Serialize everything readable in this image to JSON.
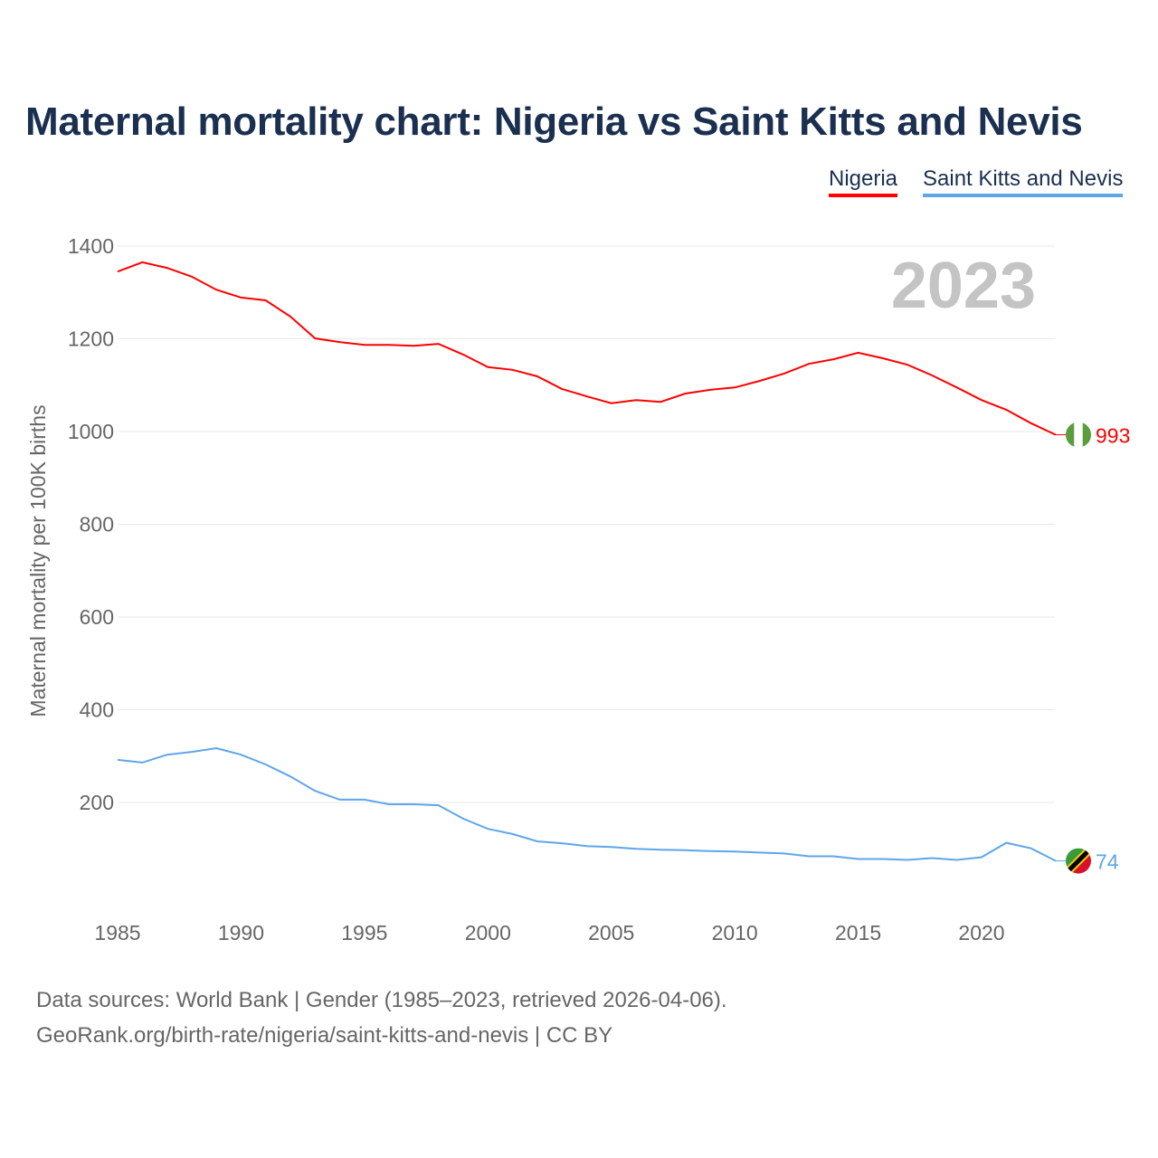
{
  "title": "Maternal mortality chart: Nigeria vs Saint Kitts and Nevis",
  "footer": {
    "line1": "Data sources: World Bank | Gender (1985–2023, retrieved 2026-04-06).",
    "line2": "GeoRank.org/birth-rate/nigeria/saint-kitts-and-nevis | CC BY"
  },
  "chart_data": {
    "type": "line",
    "title": "Maternal mortality chart: Nigeria vs Saint Kitts and Nevis",
    "xlabel": "",
    "ylabel": "Maternal mortality per 100K births",
    "year_label": "2023",
    "xlim": [
      1985,
      2023
    ],
    "ylim": [
      0,
      1400
    ],
    "x_ticks": [
      1985,
      1990,
      1995,
      2000,
      2005,
      2010,
      2015,
      2020
    ],
    "y_ticks": [
      200,
      400,
      600,
      800,
      1000,
      1200,
      1400
    ],
    "grid": true,
    "legend_position": "top-right",
    "x": [
      1985,
      1986,
      1987,
      1988,
      1989,
      1990,
      1991,
      1992,
      1993,
      1994,
      1995,
      1996,
      1997,
      1998,
      1999,
      2000,
      2001,
      2002,
      2003,
      2004,
      2005,
      2006,
      2007,
      2008,
      2009,
      2010,
      2011,
      2012,
      2013,
      2014,
      2015,
      2016,
      2017,
      2018,
      2019,
      2020,
      2021,
      2022,
      2023
    ],
    "series": [
      {
        "name": "Nigeria",
        "color": "#ff0000",
        "end_label": "993",
        "values": [
          1345,
          1365,
          1353,
          1334,
          1306,
          1289,
          1283,
          1248,
          1201,
          1193,
          1187,
          1187,
          1185,
          1189,
          1166,
          1139,
          1133,
          1119,
          1092,
          1076,
          1061,
          1068,
          1064,
          1082,
          1090,
          1095,
          1109,
          1125,
          1146,
          1156,
          1170,
          1158,
          1144,
          1121,
          1095,
          1068,
          1047,
          1018,
          993
        ]
      },
      {
        "name": "Saint Kitts and Nevis",
        "color": "#5ea6ea",
        "end_label": "74",
        "values": [
          292,
          286,
          303,
          309,
          317,
          303,
          282,
          256,
          225,
          206,
          206,
          196,
          196,
          194,
          165,
          143,
          132,
          116,
          112,
          106,
          104,
          100,
          98,
          97,
          95,
          94,
          92,
          90,
          84,
          84,
          78,
          78,
          76,
          80,
          76,
          82,
          113,
          101,
          74
        ]
      }
    ]
  }
}
